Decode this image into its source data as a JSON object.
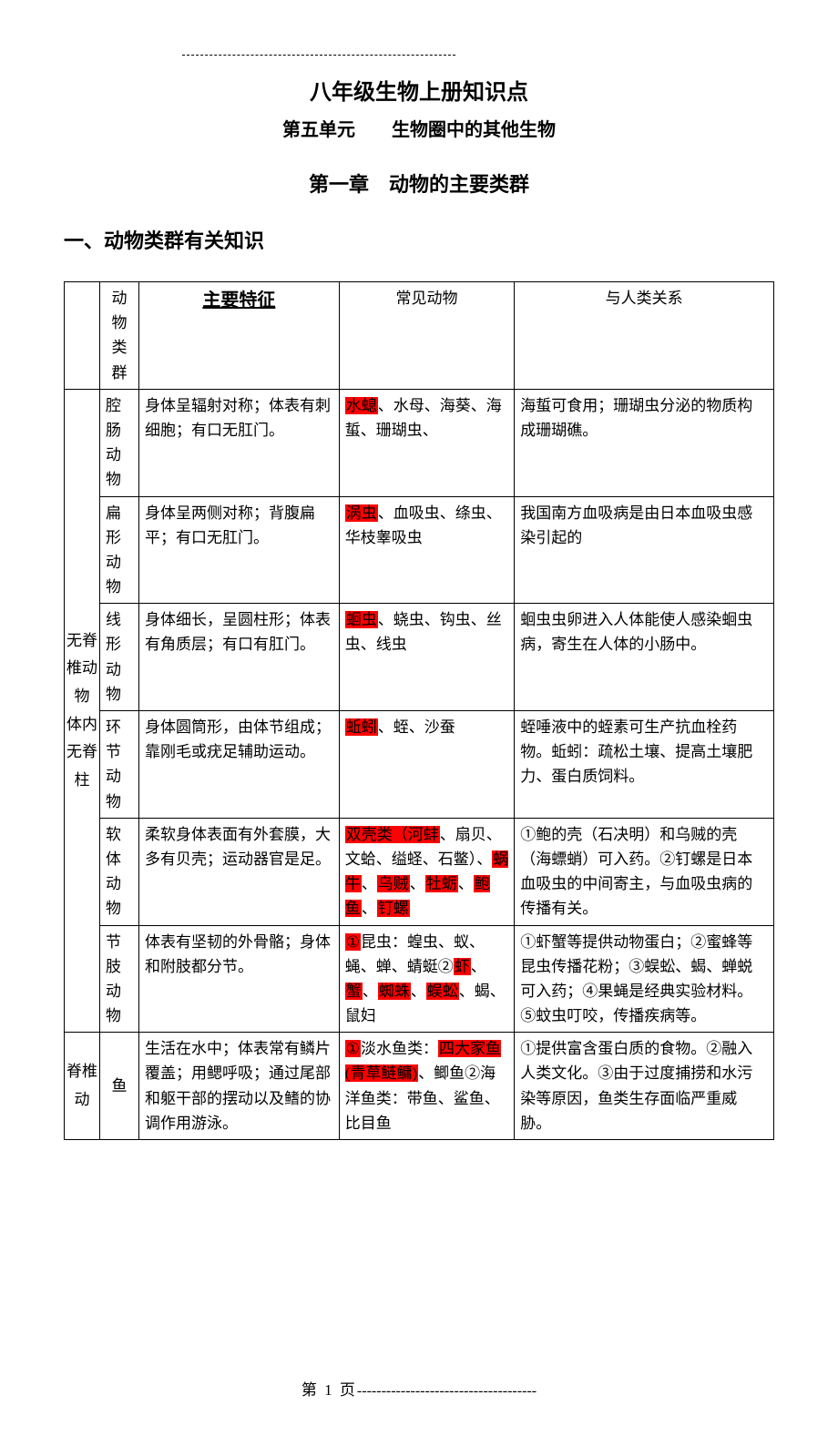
{
  "top_dashes": "-------------------------------------------",
  "title1": "八年级生物上册知识点",
  "title2": "第五单元　　生物圈中的其他生物",
  "chapter": "第一章　动物的主要类群",
  "section": "一、动物类群有关知识",
  "headers": {
    "col2": "动物类群",
    "col3": "主要特征",
    "col4": "常见动物",
    "col5": "与人类关系"
  },
  "groupA": {
    "label": "无脊椎动物　体内无脊柱"
  },
  "rows": [
    {
      "name": "腔肠动物",
      "feature": "身体呈辐射对称；体表有刺细胞；有口无肛门。",
      "animals": {
        "hl1": "水螅",
        "t1": "、水母、海葵、海蜇、珊瑚虫、"
      },
      "relation": "海蜇可食用；珊瑚虫分泌的物质构成珊瑚礁。"
    },
    {
      "name": "扁形动物",
      "feature": "身体呈两侧对称；背腹扁平；有口无肛门。",
      "animals": {
        "hl1": "涡虫",
        "t1": "、血吸虫、绦虫、华枝睾吸虫"
      },
      "relation": "我国南方血吸病是由日本血吸虫感染引起的"
    },
    {
      "name": "线形动物",
      "feature": "身体细长，呈圆柱形；体表有角质层；有口有肛门。",
      "animals": {
        "hl1": "蛔虫",
        "t1": "、蛲虫、钩虫、丝虫、线虫"
      },
      "relation": "蛔虫虫卵进入人体能使人感染蛔虫病，寄生在人体的小肠中。"
    },
    {
      "name": "环节动物",
      "feature": "身体圆筒形，由体节组成；靠刚毛或疣足辅助运动。",
      "animals": {
        "hl1": "蚯蚓",
        "t1": "、蛭、沙蚕"
      },
      "relation": "蛭唾液中的蛭素可生产抗血栓药物。蚯蚓：疏松土壤、提高土壤肥力、蛋白质饲料。"
    },
    {
      "name": "软体动物",
      "feature": "柔软身体表面有外套膜，大多有贝壳；运动器官是足。",
      "animals": {
        "hl1": "双壳类（河蚌",
        "t1": "、扇贝、文蛤、缢蛏、石鳖）、",
        "hl2": "蜗牛",
        "t2": "、",
        "hl3": "乌贼",
        "t3": "、",
        "hl4": "牡蛎",
        "t4": "、",
        "hl5": "鲍鱼",
        "t5": "、",
        "hl6": "钉螺"
      },
      "relation": "①鲍的壳（石决明）和乌贼的壳（海螵蛸）可入药。②钉螺是日本血吸虫的中间寄主，与血吸虫病的传播有关。"
    },
    {
      "name": "节肢动物",
      "feature": "体表有坚韧的外骨骼；身体和附肢都分节。",
      "animals": {
        "hl1": "①",
        "t1": "昆虫：蝗虫、蚁、蝇、蝉、蜻蜓②",
        "hl2": "虾",
        "t2": "、",
        "hl3": "蟹",
        "t3": "、",
        "hl4": "蜘蛛",
        "t4": "、",
        "hl5": "蜈蚣",
        "t5": "、蝎、鼠妇"
      },
      "relation": "①虾蟹等提供动物蛋白；②蜜蜂等昆虫传播花粉；③蜈蚣、蝎、蝉蜕可入药；④果蝇是经典实验材料。⑤蚊虫叮咬，传播疾病等。"
    }
  ],
  "groupB": {
    "label": "脊椎动"
  },
  "fish": {
    "name": "鱼",
    "feature": "生活在水中；体表常有鳞片覆盖；用鳃呼吸；通过尾部和躯干部的摆动以及鳍的协调作用游泳。",
    "animals": {
      "hl1": "①",
      "t1": "淡水鱼类：",
      "hl2": "四大家鱼(青草鲢鳙)",
      "t2": "、鲫鱼②海洋鱼类：带鱼、鲨鱼、比目鱼"
    },
    "relation": "①提供富含蛋白质的食物。②融入人类文化。③由于过度捕捞和水污染等原因，鱼类生存面临严重威胁。"
  },
  "footer": {
    "left_dash": "",
    "page_label": "第 1 页",
    "right_dash": "-------------------------------------"
  }
}
